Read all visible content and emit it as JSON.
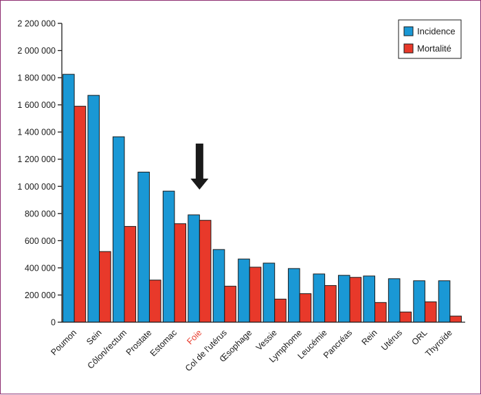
{
  "chart_data": {
    "type": "bar",
    "title": "",
    "xlabel": "",
    "ylabel": "",
    "ylim": [
      0,
      2200000
    ],
    "yticks": [
      0,
      200000,
      400000,
      600000,
      800000,
      1000000,
      1200000,
      1400000,
      1600000,
      1800000,
      2000000,
      2200000
    ],
    "ytick_labels": [
      "0",
      "200 000",
      "400 000",
      "600 000",
      "800 000",
      "1 000 000",
      "1 200 000",
      "1 400 000",
      "1 600 000",
      "1 800 000",
      "2 000 000",
      "2 200 000"
    ],
    "categories": [
      "Poumon",
      "Sein",
      "Côlon/rectum",
      "Prostate",
      "Estomac",
      "Foie",
      "Col de l'utérus",
      "Œsophage",
      "Vessie",
      "Lymphome",
      "Leucémie",
      "Pancréas",
      "Rein",
      "Utérus",
      "ORL",
      "Thyroïde"
    ],
    "highlighted_category": "Foie",
    "highlight_color": "#e8392a",
    "annotation": "arrow pointing down at Foie",
    "series": [
      {
        "name": "Incidence",
        "color": "#1a98d5",
        "values": [
          1825000,
          1670000,
          1365000,
          1105000,
          965000,
          790000,
          535000,
          465000,
          435000,
          395000,
          355000,
          345000,
          340000,
          320000,
          305000,
          305000
        ]
      },
      {
        "name": "Mortalité",
        "color": "#e8392a",
        "values": [
          1590000,
          520000,
          705000,
          310000,
          725000,
          750000,
          265000,
          405000,
          170000,
          210000,
          270000,
          330000,
          145000,
          75000,
          150000,
          45000
        ]
      }
    ],
    "legend_position": "top-right",
    "grid": false
  }
}
